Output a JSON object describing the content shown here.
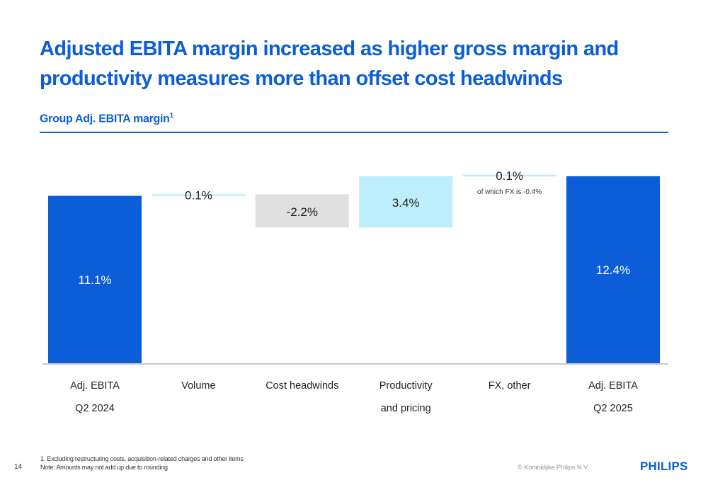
{
  "header": {
    "title": "Adjusted EBITA margin increased as higher gross margin and productivity measures more than offset cost headwinds",
    "subtitle": "Group Adj. EBITA margin",
    "subtitle_sup": "1"
  },
  "chart_data": {
    "type": "waterfall",
    "title": "Group Adj. EBITA margin",
    "unit": "%",
    "ylim": [
      0,
      13
    ],
    "categories": [
      [
        "Adj. EBITA",
        "Q2 2024"
      ],
      [
        "Volume"
      ],
      [
        "Cost headwinds"
      ],
      [
        "Productivity",
        "and pricing"
      ],
      [
        "FX, other"
      ],
      [
        "Adj. EBITA",
        "Q2 2025"
      ]
    ],
    "bars": [
      {
        "kind": "total",
        "value": 11.1,
        "label": "11.1%",
        "color": "#0b5ed7",
        "label_color": "#ffffff"
      },
      {
        "kind": "delta",
        "value": 0.1,
        "label": "0.1%",
        "color": "#bdeefc",
        "label_color": "#222222"
      },
      {
        "kind": "delta",
        "value": -2.2,
        "label": "-2.2%",
        "color": "#e0e0e0",
        "label_color": "#222222"
      },
      {
        "kind": "delta",
        "value": 3.4,
        "label": "3.4%",
        "color": "#bdeefc",
        "label_color": "#222222"
      },
      {
        "kind": "delta",
        "value": 0.1,
        "label": "0.1%",
        "color": "#bdeefc",
        "label_color": "#222222",
        "annotation": "of which FX is -0.4%"
      },
      {
        "kind": "total",
        "value": 12.4,
        "label": "12.4%",
        "color": "#0b5ed7",
        "label_color": "#ffffff"
      }
    ],
    "grid": false,
    "legend": "none"
  },
  "footer": {
    "footnote_1": "1. Excluding restructuring costs, acquisition-related charges and other items",
    "note": "Note: Amounts may not add up due to rounding",
    "page_number": "14",
    "copyright": "© Koninklijke Philips N.V.",
    "logo": "PHILIPS"
  }
}
